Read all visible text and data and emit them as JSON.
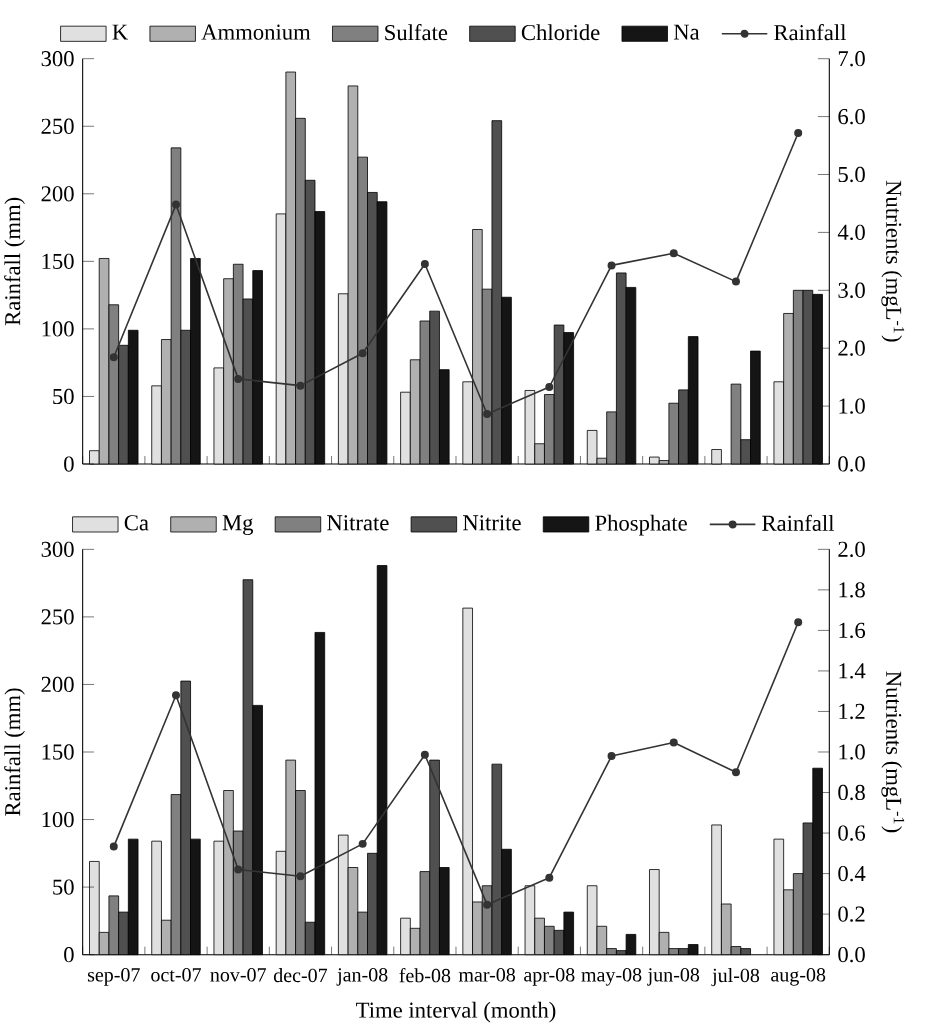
{
  "chart_data": [
    {
      "type": "bar",
      "categories": [
        null,
        null,
        null,
        null,
        null,
        null,
        null,
        null,
        null,
        null,
        null,
        null
      ],
      "ylabel": "Rainfall (mm)",
      "y2label": "Nutrients (mgL$^{-1}$)",
      "ylim": [
        0,
        300
      ],
      "yticks": [
        0,
        50,
        100,
        150,
        200,
        250,
        300
      ],
      "y2lim": [
        0,
        7
      ],
      "y2ticks": [
        {
          "value": 0,
          "label": "0.0"
        },
        {
          "value": 1,
          "label": "1.0"
        },
        {
          "value": 2,
          "label": "2.0"
        },
        {
          "value": 3,
          "label": "3.0"
        },
        {
          "value": 4,
          "label": "4.0"
        },
        {
          "value": 5,
          "label": "5.0"
        },
        {
          "value": 6,
          "label": "6.0"
        },
        {
          "value": 7,
          "label": "7.0"
        }
      ],
      "legend": "top",
      "series": [
        {
          "name": "K",
          "color": "#e0e0e0",
          "axis": "y2",
          "values": [
            0.23,
            1.35,
            1.66,
            4.32,
            2.94,
            1.24,
            1.42,
            1.27,
            0.58,
            0.12,
            0.25,
            1.42
          ]
        },
        {
          "name": "Ammonium",
          "color": "#b0b0b0",
          "axis": "y2",
          "values": [
            3.55,
            2.15,
            3.2,
            6.77,
            6.53,
            1.8,
            4.05,
            0.35,
            0.1,
            0.06,
            null,
            2.6
          ]
        },
        {
          "name": "Sulfate",
          "color": "#808080",
          "axis": "y2",
          "values": [
            2.75,
            5.46,
            3.45,
            5.97,
            5.3,
            2.47,
            3.02,
            1.2,
            0.9,
            1.05,
            1.38,
            3.0
          ]
        },
        {
          "name": "Chloride",
          "color": "#505050",
          "axis": "y2",
          "values": [
            2.05,
            2.31,
            2.85,
            4.9,
            4.69,
            2.64,
            5.93,
            2.4,
            3.3,
            1.28,
            0.42,
            3.0
          ]
        },
        {
          "name": "Na",
          "color": "#151515",
          "axis": "y2",
          "values": [
            2.31,
            3.55,
            3.34,
            4.36,
            4.53,
            1.63,
            2.88,
            2.27,
            3.05,
            2.2,
            1.95,
            2.93
          ]
        },
        {
          "name": "Rainfall",
          "type": "line",
          "color": "#333333",
          "axis": "y",
          "marker": "circle",
          "line_style": "solid",
          "values": [
            79,
            192,
            63,
            58,
            82,
            148,
            37,
            57,
            147,
            156,
            135,
            245
          ]
        }
      ]
    },
    {
      "type": "bar",
      "categories": [
        "sep-07",
        "oct-07",
        "nov-07",
        "dec-07",
        "jan-08",
        "feb-08",
        "mar-08",
        "apr-08",
        "may-08",
        "jun-08",
        "jul-08",
        "aug-08"
      ],
      "xlabel": "Time interval (month)",
      "ylabel": "Rainfall (mm)",
      "y2label": "Nutrients (mgL$^{-1}$)",
      "ylim": [
        0,
        300
      ],
      "yticks": [
        0,
        50,
        100,
        150,
        200,
        250,
        300
      ],
      "y2lim": [
        0,
        2
      ],
      "y2ticks": [
        {
          "value": 0,
          "label": "0.0"
        },
        0.2,
        0.4,
        0.6,
        0.8,
        {
          "value": 1,
          "label": "1.0"
        },
        1.2,
        1.4,
        1.6,
        1.8,
        {
          "value": 2,
          "label": "2.0"
        }
      ],
      "legend": "top",
      "series": [
        {
          "name": "Ca",
          "color": "#e0e0e0",
          "axis": "y2",
          "values": [
            0.46,
            0.56,
            0.56,
            0.51,
            0.59,
            0.18,
            1.71,
            0.34,
            0.34,
            0.42,
            0.64,
            0.57
          ]
        },
        {
          "name": "Mg",
          "color": "#b0b0b0",
          "axis": "y2",
          "values": [
            0.11,
            0.17,
            0.81,
            0.96,
            0.43,
            0.13,
            0.26,
            0.18,
            0.14,
            0.11,
            0.25,
            0.32
          ]
        },
        {
          "name": "Nitrate",
          "color": "#808080",
          "axis": "y2",
          "values": [
            0.29,
            0.79,
            0.61,
            0.81,
            0.21,
            0.41,
            0.34,
            0.14,
            0.03,
            0.03,
            0.04,
            0.4
          ]
        },
        {
          "name": "Nitrite",
          "color": "#505050",
          "axis": "y2",
          "values": [
            0.21,
            1.35,
            1.85,
            0.16,
            0.5,
            0.96,
            0.94,
            0.12,
            0.02,
            0.03,
            0.03,
            0.65
          ]
        },
        {
          "name": "Phosphate",
          "color": "#151515",
          "axis": "y2",
          "values": [
            0.57,
            0.57,
            1.23,
            1.59,
            1.92,
            0.43,
            0.52,
            0.21,
            0.1,
            0.05,
            null,
            0.92
          ]
        },
        {
          "name": "Rainfall",
          "type": "line",
          "color": "#333333",
          "axis": "y",
          "marker": "circle",
          "line_style": "solid",
          "values": [
            80,
            192,
            63,
            58,
            82,
            148,
            37,
            57,
            147,
            157,
            135,
            246
          ]
        }
      ]
    }
  ]
}
